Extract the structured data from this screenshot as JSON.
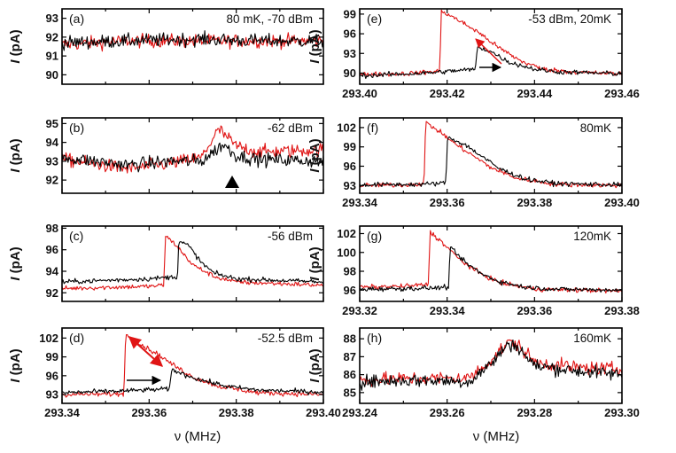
{
  "figure": {
    "x_axis_label": "ν (MHz)",
    "y_axis_label_italic": "I",
    "y_axis_label_rest": " (pA)",
    "colors": {
      "up_sweep": "#000000",
      "down_sweep": "#e01414"
    }
  },
  "chart_data": [
    {
      "id": "a",
      "panel_label": "(a)",
      "annotation": "80 mK, -70 dBm",
      "type": "line",
      "xlim": [
        293.34,
        293.4
      ],
      "ylim": [
        89.5,
        93.5
      ],
      "yticks": [
        "90",
        "91",
        "92",
        "93"
      ],
      "xticks": [],
      "grid": false,
      "series": [
        {
          "color": "#000000",
          "x": [
            293.34,
            293.355,
            293.37,
            293.385,
            293.4
          ],
          "y": [
            91.7,
            91.8,
            91.9,
            91.8,
            91.8
          ]
        },
        {
          "color": "#e01414",
          "x": [
            293.34,
            293.355,
            293.37,
            293.385,
            293.4
          ],
          "y": [
            91.6,
            91.8,
            91.8,
            91.8,
            91.8
          ]
        }
      ]
    },
    {
      "id": "b",
      "panel_label": "(b)",
      "annotation": "-62 dBm",
      "type": "line",
      "xlim": [
        293.34,
        293.4
      ],
      "ylim": [
        91.3,
        95.3
      ],
      "yticks": [
        "92",
        "93",
        "94",
        "95"
      ],
      "xticks": [],
      "grid": false,
      "series": [
        {
          "color": "#000000",
          "x": [
            293.34,
            293.355,
            293.365,
            293.372,
            293.377,
            293.38,
            293.385,
            293.4
          ],
          "y": [
            93.2,
            92.8,
            93.0,
            93.0,
            93.9,
            93.3,
            93.1,
            93.0
          ]
        },
        {
          "color": "#e01414",
          "x": [
            293.34,
            293.355,
            293.365,
            293.372,
            293.376,
            293.38,
            293.385,
            293.4
          ],
          "y": [
            93.1,
            92.6,
            92.9,
            93.2,
            94.7,
            93.8,
            93.5,
            93.6
          ]
        }
      ]
    },
    {
      "id": "c",
      "panel_label": "(c)",
      "annotation": "-56 dBm",
      "type": "line",
      "xlim": [
        293.34,
        293.4
      ],
      "ylim": [
        91.2,
        98.2
      ],
      "yticks": [
        "92",
        "94",
        "96",
        "98"
      ],
      "xticks": [],
      "grid": false,
      "series": [
        {
          "color": "#000000",
          "x": [
            293.34,
            293.36,
            293.3665,
            293.3668,
            293.369,
            293.372,
            293.375,
            293.38,
            293.4
          ],
          "y": [
            93.0,
            93.3,
            93.5,
            96.8,
            96.4,
            94.8,
            93.8,
            93.3,
            93.0
          ]
        },
        {
          "color": "#e01414",
          "x": [
            293.34,
            293.36,
            293.3634,
            293.3637,
            293.366,
            293.37,
            293.375,
            293.38,
            293.4
          ],
          "y": [
            92.4,
            92.6,
            92.7,
            97.3,
            96.5,
            94.6,
            93.5,
            93.0,
            92.7
          ]
        }
      ]
    },
    {
      "id": "d",
      "panel_label": "(d)",
      "annotation": "-52.5 dBm",
      "type": "line",
      "xlim": [
        293.34,
        293.4
      ],
      "ylim": [
        91.6,
        103.6
      ],
      "yticks": [
        "93",
        "96",
        "99",
        "102"
      ],
      "xticks": [
        "293.34",
        "293.36",
        "293.38",
        "293.40"
      ],
      "grid": false,
      "series": [
        {
          "color": "#000000",
          "x": [
            293.34,
            293.355,
            293.3647,
            293.3652,
            293.368,
            293.372,
            293.378,
            293.385,
            293.4
          ],
          "y": [
            93.3,
            93.6,
            93.9,
            97.0,
            96.2,
            95.3,
            94.3,
            93.7,
            93.4
          ]
        },
        {
          "color": "#e01414",
          "x": [
            293.34,
            293.3542,
            293.3546,
            293.358,
            293.362,
            293.366,
            293.37,
            293.376,
            293.385,
            293.4
          ],
          "y": [
            93.0,
            93.1,
            102.5,
            101.0,
            99.4,
            97.5,
            95.8,
            94.3,
            93.3,
            93.0
          ]
        }
      ]
    },
    {
      "id": "e",
      "panel_label": "(e)",
      "annotation": "-53 dBm, 20mK",
      "type": "line",
      "xlim": [
        293.4,
        293.46
      ],
      "ylim": [
        88.3,
        99.8
      ],
      "yticks": [
        "90",
        "93",
        "96",
        "99"
      ],
      "xticks": [
        "293.40",
        "293.42",
        "293.44",
        "293.46"
      ],
      "grid": false,
      "series": [
        {
          "color": "#000000",
          "x": [
            293.4,
            293.415,
            293.4265,
            293.4269,
            293.43,
            293.434,
            293.44,
            293.445,
            293.46
          ],
          "y": [
            89.6,
            90.0,
            90.6,
            94.0,
            93.3,
            91.7,
            90.6,
            90.2,
            89.9
          ]
        },
        {
          "color": "#e01414",
          "x": [
            293.4,
            293.41,
            293.4183,
            293.4187,
            293.422,
            293.427,
            293.432,
            293.437,
            293.442,
            293.45,
            293.46
          ],
          "y": [
            89.8,
            89.9,
            90.3,
            99.5,
            98.3,
            96.3,
            93.8,
            91.8,
            90.6,
            90.1,
            89.9
          ]
        }
      ]
    },
    {
      "id": "f",
      "panel_label": "(f)",
      "annotation": "80mK",
      "type": "line",
      "xlim": [
        293.34,
        293.4
      ],
      "ylim": [
        91.8,
        103.5
      ],
      "yticks": [
        "93",
        "96",
        "99",
        "102"
      ],
      "xticks": [
        "293.34",
        "293.36",
        "293.38",
        "293.40"
      ],
      "grid": false,
      "series": [
        {
          "color": "#000000",
          "x": [
            293.34,
            293.355,
            293.3597,
            293.3601,
            293.364,
            293.368,
            293.372,
            293.378,
            293.385,
            293.4
          ],
          "y": [
            93.1,
            93.2,
            93.4,
            100.5,
            99.4,
            97.5,
            95.6,
            94.0,
            93.3,
            93.1
          ]
        },
        {
          "color": "#e01414",
          "x": [
            293.34,
            293.35,
            293.3547,
            293.3551,
            293.358,
            293.362,
            293.366,
            293.37,
            293.376,
            293.385,
            293.4
          ],
          "y": [
            93.0,
            93.1,
            93.3,
            102.8,
            101.5,
            99.4,
            97.6,
            95.8,
            94.1,
            93.2,
            93.0
          ]
        }
      ]
    },
    {
      "id": "g",
      "panel_label": "(g)",
      "annotation": "120mK",
      "type": "line",
      "xlim": [
        293.32,
        293.38
      ],
      "ylim": [
        94.8,
        102.8
      ],
      "yticks": [
        "96",
        "98",
        "100",
        "102"
      ],
      "xticks": [
        "293.32",
        "293.34",
        "293.36",
        "293.38"
      ],
      "grid": false,
      "series": [
        {
          "color": "#000000",
          "x": [
            293.32,
            293.335,
            293.3403,
            293.3407,
            293.344,
            293.348,
            293.352,
            293.358,
            293.365,
            293.38
          ],
          "y": [
            96.1,
            96.2,
            96.3,
            100.5,
            99.0,
            97.7,
            96.9,
            96.3,
            96.1,
            96.0
          ]
        },
        {
          "color": "#e01414",
          "x": [
            293.32,
            293.33,
            293.3357,
            293.3361,
            293.339,
            293.343,
            293.347,
            293.352,
            293.36,
            293.38
          ],
          "y": [
            96.3,
            96.4,
            96.6,
            102.2,
            101.0,
            99.2,
            97.9,
            96.8,
            96.1,
            95.9
          ]
        }
      ]
    },
    {
      "id": "h",
      "panel_label": "(h)",
      "annotation": "160mK",
      "type": "line",
      "xlim": [
        293.24,
        293.3
      ],
      "ylim": [
        84.4,
        88.6
      ],
      "yticks": [
        "85",
        "86",
        "87",
        "88"
      ],
      "xticks": [
        "293.24",
        "293.26",
        "293.28",
        "293.30"
      ],
      "grid": false,
      "series": [
        {
          "color": "#000000",
          "x": [
            293.24,
            293.255,
            293.265,
            293.27,
            293.274,
            293.276,
            293.28,
            293.29,
            293.3
          ],
          "y": [
            85.6,
            85.7,
            85.6,
            86.6,
            87.7,
            87.6,
            86.5,
            86.2,
            86.0
          ]
        },
        {
          "color": "#e01414",
          "x": [
            293.24,
            293.255,
            293.265,
            293.27,
            293.274,
            293.276,
            293.28,
            293.29,
            293.3
          ],
          "y": [
            85.7,
            85.8,
            85.8,
            86.8,
            87.8,
            87.7,
            86.7,
            86.4,
            86.3
          ]
        }
      ]
    }
  ]
}
